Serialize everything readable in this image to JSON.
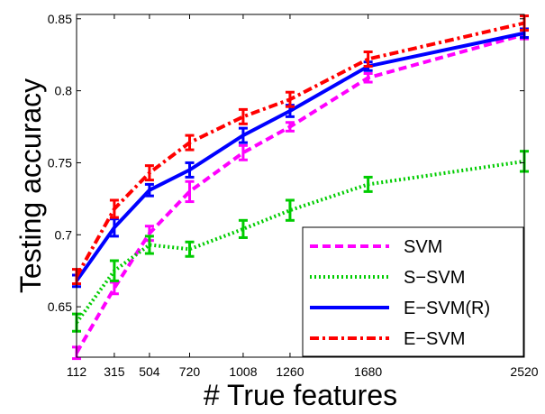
{
  "chart_data": {
    "type": "line",
    "xlabel": "# True features",
    "ylabel": "Testing accuracy",
    "x": [
      112,
      315,
      504,
      720,
      1008,
      1260,
      1680,
      2520
    ],
    "x_tick_labels": [
      "112",
      "315",
      "504",
      "720",
      "1008",
      "1260",
      "1680",
      "2520"
    ],
    "xlim": [
      112,
      2520
    ],
    "ylim": [
      0.615,
      0.853
    ],
    "y_ticks": [
      0.65,
      0.7,
      0.75,
      0.8,
      0.85
    ],
    "y_tick_labels": [
      "0.65",
      "0.7",
      "0.75",
      "0.8",
      "0.85"
    ],
    "grid": false,
    "legend_position": "bottom-right",
    "series": [
      {
        "name": "SVM",
        "color": "#ff00ff",
        "style": "dashed",
        "values": [
          0.618,
          0.663,
          0.701,
          0.73,
          0.757,
          0.775,
          0.809,
          0.839
        ],
        "errors": [
          0.004,
          0.004,
          0.005,
          0.007,
          0.005,
          0.003,
          0.003,
          0.003
        ]
      },
      {
        "name": "S−SVM",
        "color": "#00cc00",
        "style": "dotted",
        "values": [
          0.639,
          0.675,
          0.693,
          0.69,
          0.704,
          0.717,
          0.735,
          0.751
        ],
        "errors": [
          0.006,
          0.007,
          0.006,
          0.005,
          0.006,
          0.007,
          0.005,
          0.007
        ]
      },
      {
        "name": "E−SVM(R)",
        "color": "#0000ff",
        "style": "solid",
        "values": [
          0.668,
          0.705,
          0.731,
          0.745,
          0.769,
          0.786,
          0.817,
          0.84
        ],
        "errors": [
          0.004,
          0.006,
          0.004,
          0.005,
          0.005,
          0.004,
          0.003,
          0.003
        ]
      },
      {
        "name": "E−SVM",
        "color": "#ff0000",
        "style": "dashdot",
        "values": [
          0.671,
          0.718,
          0.743,
          0.764,
          0.782,
          0.794,
          0.822,
          0.847
        ],
        "errors": [
          0.005,
          0.006,
          0.005,
          0.005,
          0.005,
          0.005,
          0.005,
          0.005
        ]
      }
    ]
  }
}
